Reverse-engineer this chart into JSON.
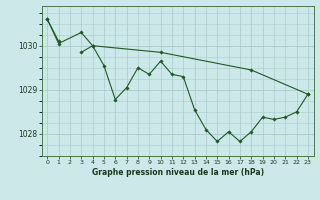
{
  "x": [
    0,
    1,
    2,
    3,
    4,
    5,
    6,
    7,
    8,
    9,
    10,
    11,
    12,
    13,
    14,
    15,
    16,
    17,
    18,
    19,
    20,
    21,
    22,
    23
  ],
  "line1": [
    1030.6,
    1030.1,
    null,
    1029.85,
    1030.0,
    1029.55,
    1028.78,
    1029.05,
    1029.5,
    1029.35,
    1029.65,
    1029.35,
    1029.3,
    1028.55,
    1028.1,
    1027.83,
    1028.05,
    1027.83,
    1028.05,
    1028.38,
    1028.33,
    1028.38,
    1028.5,
    1028.9
  ],
  "line2": [
    1030.6,
    1030.05,
    null,
    1030.3,
    1030.0,
    null,
    null,
    null,
    null,
    null,
    1029.85,
    null,
    null,
    null,
    null,
    null,
    null,
    null,
    1029.45,
    null,
    null,
    null,
    null,
    1028.9
  ],
  "background_color": "#cce8e8",
  "grid_color": "#aacccc",
  "line_color": "#1e5c1e",
  "ylabel_values": [
    1028,
    1029,
    1030
  ],
  "xlabel_label": "Graphe pression niveau de la mer (hPa)",
  "ylim": [
    1027.5,
    1030.9
  ],
  "xlim": [
    -0.5,
    23.5
  ]
}
